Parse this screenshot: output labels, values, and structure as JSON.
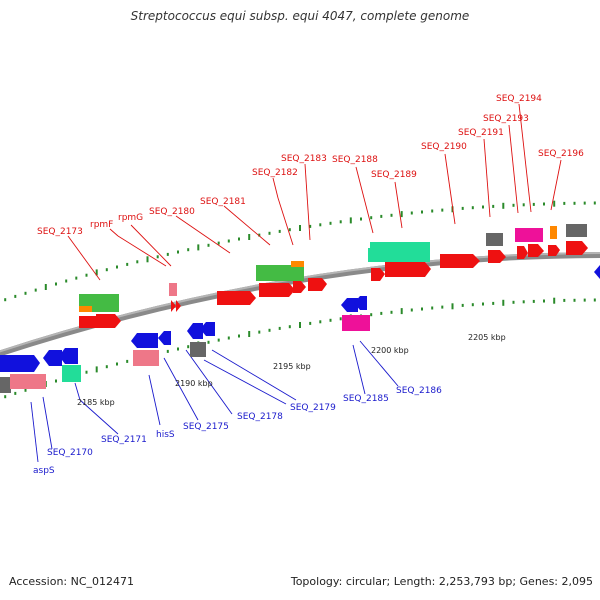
{
  "title": "Streptococcus equi subsp. equi 4047, complete genome",
  "footer": {
    "accession": "Accession: NC_012471",
    "summary": "Topology: circular; Length: 2,253,793 bp; Genes: 2,095"
  },
  "colors": {
    "backbone": "#8a8a8a",
    "tick": "#2a8a2a",
    "label_top": "#dd1111",
    "label_bottom": "#1a1acc",
    "red_gene": "#ee1111",
    "blue_gene": "#1111dd",
    "pink_gene": "#ee7788",
    "green_gene": "#44bb44",
    "cyan_gene": "#22dd99",
    "magenta_gene": "#ee1199",
    "orange_gene": "#ff8800",
    "grey_gene": "#666666"
  },
  "scale_labels": [
    "2185 kbp",
    "2190 kbp",
    "2195 kbp",
    "2200 kbp",
    "2205 kbp"
  ],
  "top_labels": [
    "SEQ_2173",
    "rpmF",
    "rpmG",
    "SEQ_2180",
    "SEQ_2181",
    "SEQ_2182",
    "SEQ_2183",
    "SEQ_2188",
    "SEQ_2189",
    "SEQ_2190",
    "SEQ_2191",
    "SEQ_2193",
    "SEQ_2194",
    "SEQ_2196"
  ],
  "bottom_labels": [
    "aspS",
    "SEQ_2170",
    "SEQ_2171",
    "hisS",
    "SEQ_2175",
    "SEQ_2178",
    "SEQ_2179",
    "SEQ_2185",
    "SEQ_2186"
  ]
}
